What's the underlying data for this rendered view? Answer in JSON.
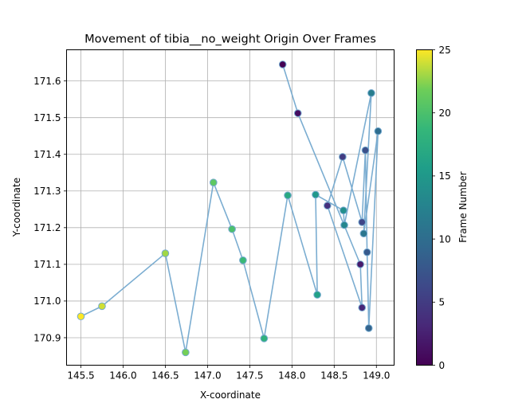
{
  "chart_data": {
    "type": "scatter",
    "title": "Movement of tibia__no_weight Origin Over Frames",
    "xlabel": "X-coordinate",
    "ylabel": "Y-coordinate",
    "xlim": [
      145.33,
      149.21
    ],
    "ylim": [
      170.825,
      171.685
    ],
    "xticks": [
      145.5,
      146.0,
      146.5,
      147.0,
      147.5,
      148.0,
      148.5,
      149.0
    ],
    "xtick_labels": [
      "145.5",
      "146.0",
      "146.5",
      "147.0",
      "147.5",
      "148.0",
      "148.5",
      "149.0"
    ],
    "yticks": [
      170.9,
      171.0,
      171.1,
      171.2,
      171.3,
      171.4,
      171.5,
      171.6
    ],
    "ytick_labels": [
      "170.9",
      "171.0",
      "171.1",
      "171.2",
      "171.3",
      "171.4",
      "171.5",
      "171.6"
    ],
    "grid": true,
    "line_color": "#74a9cf",
    "colormap": "viridis",
    "colorbar": {
      "label": "Frame Number",
      "range": [
        0,
        25
      ],
      "ticks": [
        0,
        5,
        10,
        15,
        20,
        25
      ],
      "tick_labels": [
        "0",
        "5",
        "10",
        "15",
        "20",
        "25"
      ]
    },
    "points": [
      {
        "frame": 0,
        "x": 147.89,
        "y": 171.645
      },
      {
        "frame": 1,
        "x": 148.07,
        "y": 171.512
      },
      {
        "frame": 2,
        "x": 148.81,
        "y": 171.1
      },
      {
        "frame": 3,
        "x": 148.83,
        "y": 170.982
      },
      {
        "frame": 4,
        "x": 148.42,
        "y": 171.26
      },
      {
        "frame": 5,
        "x": 148.6,
        "y": 171.393
      },
      {
        "frame": 6,
        "x": 148.83,
        "y": 171.215
      },
      {
        "frame": 7,
        "x": 148.87,
        "y": 171.411
      },
      {
        "frame": 8,
        "x": 148.89,
        "y": 171.133
      },
      {
        "frame": 9,
        "x": 148.91,
        "y": 170.926
      },
      {
        "frame": 10,
        "x": 149.02,
        "y": 171.463
      },
      {
        "frame": 11,
        "x": 148.85,
        "y": 171.184
      },
      {
        "frame": 12,
        "x": 148.94,
        "y": 171.567
      },
      {
        "frame": 13,
        "x": 148.62,
        "y": 171.207
      },
      {
        "frame": 14,
        "x": 148.61,
        "y": 171.247
      },
      {
        "frame": 15,
        "x": 148.28,
        "y": 171.29
      },
      {
        "frame": 16,
        "x": 148.3,
        "y": 171.017
      },
      {
        "frame": 17,
        "x": 147.95,
        "y": 171.288
      },
      {
        "frame": 18,
        "x": 147.67,
        "y": 170.898
      },
      {
        "frame": 19,
        "x": 147.42,
        "y": 171.111
      },
      {
        "frame": 20,
        "x": 147.29,
        "y": 171.196
      },
      {
        "frame": 21,
        "x": 147.07,
        "y": 171.323
      },
      {
        "frame": 22,
        "x": 146.74,
        "y": 170.86
      },
      {
        "frame": 23,
        "x": 146.5,
        "y": 171.13
      },
      {
        "frame": 24,
        "x": 145.75,
        "y": 170.986
      },
      {
        "frame": 25,
        "x": 145.5,
        "y": 170.958
      }
    ]
  }
}
